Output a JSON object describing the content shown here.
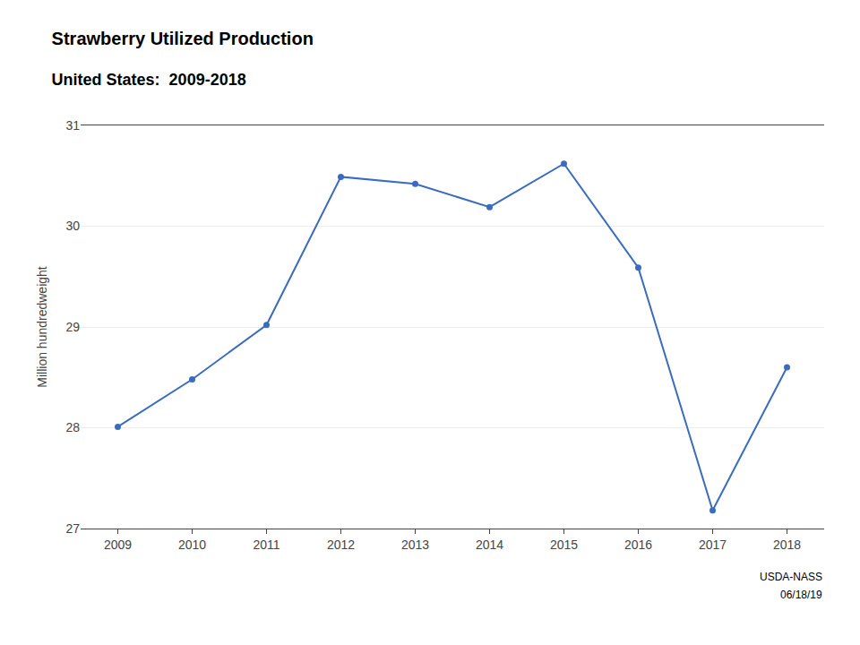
{
  "chart_data": {
    "type": "line",
    "title": "Strawberry Utilized Production",
    "subtitle": "United States:  2009-2018",
    "ylabel": "Million hundredweight",
    "annotations": [
      "USDA-NASS",
      "06/18/19"
    ],
    "x": [
      2009,
      2010,
      2011,
      2012,
      2013,
      2014,
      2015,
      2016,
      2017,
      2018
    ],
    "values": [
      28.01,
      28.48,
      29.02,
      30.49,
      30.42,
      30.19,
      30.62,
      29.59,
      27.18,
      28.6
    ],
    "color": "#3a6bbf",
    "marker": "circle",
    "xlim": [
      2008.5,
      2018.5
    ],
    "xticks": [
      2009,
      2010,
      2011,
      2012,
      2013,
      2014,
      2015,
      2016,
      2017,
      2018
    ],
    "ylim": [
      27.0,
      31.0
    ],
    "yticks": [
      27,
      28,
      29,
      30,
      31
    ],
    "grid": true
  }
}
